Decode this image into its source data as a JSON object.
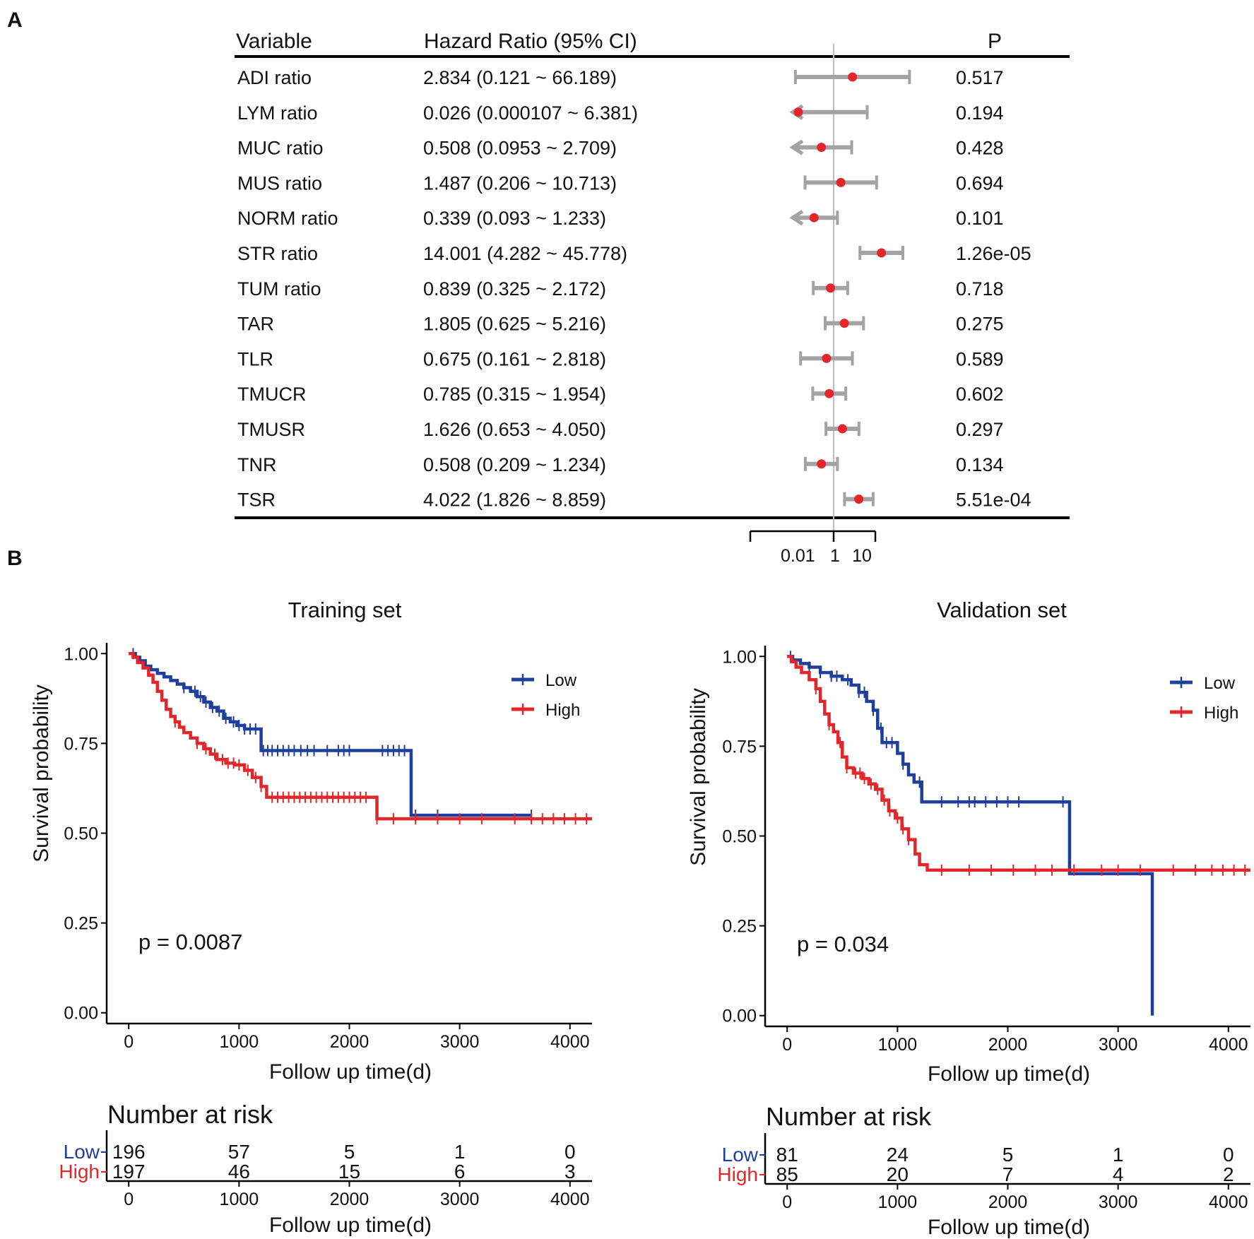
{
  "panel_labels": {
    "a": "A",
    "b": "B"
  },
  "colors": {
    "low": "#1f3f9c",
    "high": "#e3262a",
    "ci": "#a3a3a3",
    "point": "#e3262a",
    "ref": "#bdbdbd"
  },
  "chart_data": [
    {
      "type": "forest",
      "headers": {
        "variable": "Variable",
        "hr": "Hazard Ratio (95% CI)",
        "p": "P"
      },
      "rows": [
        {
          "variable": "ADI ratio",
          "hr_text": "2.834 (0.121 ~ 66.189)",
          "hr": 2.834,
          "lower": 0.121,
          "upper": 66.189,
          "p": "0.517"
        },
        {
          "variable": "LYM ratio",
          "hr_text": "0.026 (0.000107 ~  6.381)",
          "hr": 0.026,
          "lower": 0.000107,
          "upper": 6.381,
          "p": "0.194"
        },
        {
          "variable": "MUC ratio",
          "hr_text": "0.508 (0.0953 ~  2.709)",
          "hr": 0.508,
          "lower": 0.0953,
          "upper": 2.709,
          "p": "0.428"
        },
        {
          "variable": "MUS ratio",
          "hr_text": "1.487 (0.206 ~ 10.713)",
          "hr": 1.487,
          "lower": 0.206,
          "upper": 10.713,
          "p": "0.694"
        },
        {
          "variable": "NORM ratio",
          "hr_text": "0.339 (0.093 ~  1.233)",
          "hr": 0.339,
          "lower": 0.093,
          "upper": 1.233,
          "p": "0.101"
        },
        {
          "variable": "STR ratio",
          "hr_text": "14.001 (4.282 ~ 45.778)",
          "hr": 14.001,
          "lower": 4.282,
          "upper": 45.778,
          "p": "1.26e-05"
        },
        {
          "variable": "TUM ratio",
          "hr_text": "0.839 (0.325 ~  2.172)",
          "hr": 0.839,
          "lower": 0.325,
          "upper": 2.172,
          "p": "0.718"
        },
        {
          "variable": "TAR",
          "hr_text": "1.805 (0.625 ~  5.216)",
          "hr": 1.805,
          "lower": 0.625,
          "upper": 5.216,
          "p": "0.275"
        },
        {
          "variable": "TLR",
          "hr_text": "0.675 (0.161 ~  2.818)",
          "hr": 0.675,
          "lower": 0.161,
          "upper": 2.818,
          "p": "0.589"
        },
        {
          "variable": "TMUCR",
          "hr_text": "0.785 (0.315 ~  1.954)",
          "hr": 0.785,
          "lower": 0.315,
          "upper": 1.954,
          "p": "0.602"
        },
        {
          "variable": "TMUSR",
          "hr_text": "1.626 (0.653 ~  4.050)",
          "hr": 1.626,
          "lower": 0.653,
          "upper": 4.05,
          "p": "0.297"
        },
        {
          "variable": "TNR",
          "hr_text": "0.508 (0.209 ~  1.234)",
          "hr": 0.508,
          "lower": 0.209,
          "upper": 1.234,
          "p": "0.134"
        },
        {
          "variable": "TSR",
          "hr_text": "4.022 (1.826 ~  8.859)",
          "hr": 4.022,
          "lower": 1.826,
          "upper": 8.859,
          "p": "5.51e-04"
        }
      ],
      "x_scale": "log",
      "x_ticks": [
        0.01,
        1,
        10
      ],
      "x_tick_labels": [
        "0.01",
        "1",
        "10"
      ],
      "reference_line": 1
    },
    {
      "type": "line",
      "subtype": "kaplan-meier",
      "title": "Training set",
      "xlabel": "Follow up time(d)",
      "ylabel": "Survival probability",
      "xlim": [
        -200,
        4200
      ],
      "ylim": [
        -0.03,
        1.03
      ],
      "x_ticks": [
        0,
        1000,
        2000,
        3000,
        4000
      ],
      "y_ticks": [
        0,
        0.25,
        0.5,
        0.75,
        1
      ],
      "y_tick_labels": [
        "0.00",
        "0.25",
        "0.50",
        "0.75",
        "1.00"
      ],
      "p_text": "p = 0.0087",
      "legend": [
        "Low",
        "High"
      ],
      "series": [
        {
          "name": "Low",
          "color_key": "low",
          "steps": [
            [
              0,
              1
            ],
            [
              30,
              1
            ],
            [
              60,
              0.99
            ],
            [
              100,
              0.98
            ],
            [
              150,
              0.965
            ],
            [
              200,
              0.955
            ],
            [
              260,
              0.945
            ],
            [
              320,
              0.935
            ],
            [
              380,
              0.925
            ],
            [
              440,
              0.915
            ],
            [
              500,
              0.905
            ],
            [
              560,
              0.895
            ],
            [
              620,
              0.88
            ],
            [
              680,
              0.865
            ],
            [
              740,
              0.85
            ],
            [
              800,
              0.84
            ],
            [
              860,
              0.82
            ],
            [
              920,
              0.81
            ],
            [
              980,
              0.8
            ],
            [
              1050,
              0.79
            ],
            [
              1200,
              0.73
            ],
            [
              2560,
              0.73
            ],
            [
              2560,
              0.55
            ],
            [
              3650,
              0.55
            ]
          ],
          "censor": [
            40,
            500,
            600,
            650,
            700,
            760,
            820,
            880,
            950,
            1000,
            1050,
            1100,
            1150,
            1220,
            1260,
            1300,
            1350,
            1400,
            1450,
            1500,
            1560,
            1620,
            1680,
            1800,
            1900,
            1950,
            2000,
            2300,
            2350,
            2400,
            2450,
            2500,
            2600,
            2800,
            3650
          ]
        },
        {
          "name": "High",
          "color_key": "high",
          "steps": [
            [
              0,
              1
            ],
            [
              40,
              0.99
            ],
            [
              80,
              0.975
            ],
            [
              130,
              0.96
            ],
            [
              180,
              0.94
            ],
            [
              220,
              0.92
            ],
            [
              260,
              0.895
            ],
            [
              300,
              0.87
            ],
            [
              340,
              0.845
            ],
            [
              380,
              0.825
            ],
            [
              420,
              0.81
            ],
            [
              460,
              0.795
            ],
            [
              500,
              0.78
            ],
            [
              560,
              0.765
            ],
            [
              620,
              0.75
            ],
            [
              680,
              0.735
            ],
            [
              740,
              0.72
            ],
            [
              800,
              0.705
            ],
            [
              880,
              0.695
            ],
            [
              960,
              0.69
            ],
            [
              1050,
              0.675
            ],
            [
              1120,
              0.655
            ],
            [
              1200,
              0.63
            ],
            [
              1250,
              0.6
            ],
            [
              2250,
              0.6
            ],
            [
              2250,
              0.54
            ],
            [
              4200,
              0.54
            ]
          ],
          "censor": [
            420,
            620,
            700,
            780,
            850,
            900,
            950,
            1000,
            1080,
            1150,
            1200,
            1300,
            1350,
            1400,
            1450,
            1500,
            1550,
            1600,
            1650,
            1700,
            1750,
            1800,
            1850,
            1900,
            1950,
            2000,
            2050,
            2100,
            2150,
            2250,
            2400,
            2600,
            2800,
            3000,
            3200,
            3500,
            3650,
            3750,
            3850,
            3950,
            4050,
            4150
          ]
        }
      ],
      "risk_table": {
        "title": "Number at risk",
        "times": [
          0,
          1000,
          2000,
          3000,
          4000
        ],
        "rows": [
          {
            "name": "Low",
            "color_key": "low",
            "counts": [
              "196",
              "57",
              "5",
              "1",
              "0"
            ]
          },
          {
            "name": "High",
            "color_key": "high",
            "counts": [
              "197",
              "46",
              "15",
              "6",
              "3"
            ]
          }
        ],
        "xlabel": "Follow up time(d)"
      }
    },
    {
      "type": "line",
      "subtype": "kaplan-meier",
      "title": "Validation set",
      "xlabel": "Follow up time(d)",
      "ylabel": "Survival probability",
      "xlim": [
        -200,
        4200
      ],
      "ylim": [
        -0.03,
        1.03
      ],
      "x_ticks": [
        0,
        1000,
        2000,
        3000,
        4000
      ],
      "y_ticks": [
        0,
        0.25,
        0.5,
        0.75,
        1
      ],
      "y_tick_labels": [
        "0.00",
        "0.25",
        "0.50",
        "0.75",
        "1.00"
      ],
      "p_text": "p = 0.034",
      "legend": [
        "Low",
        "High"
      ],
      "series": [
        {
          "name": "Low",
          "color_key": "low",
          "steps": [
            [
              0,
              1
            ],
            [
              50,
              0.99
            ],
            [
              120,
              0.98
            ],
            [
              200,
              0.97
            ],
            [
              300,
              0.955
            ],
            [
              400,
              0.945
            ],
            [
              500,
              0.935
            ],
            [
              580,
              0.92
            ],
            [
              650,
              0.9
            ],
            [
              720,
              0.875
            ],
            [
              780,
              0.85
            ],
            [
              820,
              0.8
            ],
            [
              860,
              0.76
            ],
            [
              960,
              0.76
            ],
            [
              1000,
              0.73
            ],
            [
              1050,
              0.7
            ],
            [
              1100,
              0.67
            ],
            [
              1150,
              0.65
            ],
            [
              1220,
              0.595
            ],
            [
              2560,
              0.595
            ],
            [
              2560,
              0.395
            ],
            [
              3310,
              0.395
            ],
            [
              3310,
              0
            ]
          ],
          "censor": [
            30,
            200,
            300,
            400,
            450,
            550,
            650,
            700,
            780,
            850,
            900,
            950,
            1050,
            1200,
            1400,
            1550,
            1650,
            1700,
            1800,
            1900,
            2000,
            2100,
            2500
          ]
        },
        {
          "name": "High",
          "color_key": "high",
          "steps": [
            [
              0,
              1
            ],
            [
              40,
              0.985
            ],
            [
              80,
              0.97
            ],
            [
              130,
              0.955
            ],
            [
              200,
              0.935
            ],
            [
              260,
              0.91
            ],
            [
              300,
              0.875
            ],
            [
              340,
              0.84
            ],
            [
              380,
              0.81
            ],
            [
              420,
              0.79
            ],
            [
              460,
              0.76
            ],
            [
              500,
              0.72
            ],
            [
              540,
              0.69
            ],
            [
              600,
              0.675
            ],
            [
              680,
              0.66
            ],
            [
              740,
              0.645
            ],
            [
              800,
              0.63
            ],
            [
              860,
              0.6
            ],
            [
              920,
              0.57
            ],
            [
              980,
              0.55
            ],
            [
              1040,
              0.52
            ],
            [
              1100,
              0.49
            ],
            [
              1160,
              0.45
            ],
            [
              1200,
              0.42
            ],
            [
              1270,
              0.405
            ],
            [
              4200,
              0.405
            ]
          ],
          "censor": [
            260,
            380,
            480,
            540,
            620,
            660,
            700,
            760,
            820,
            880,
            930,
            1000,
            1050,
            1100,
            1400,
            1650,
            1850,
            2050,
            2250,
            2400,
            2600,
            2850,
            3000,
            3200,
            3500,
            3700,
            3850,
            3950,
            4050,
            4150
          ]
        }
      ],
      "risk_table": {
        "title": "Number at risk",
        "times": [
          0,
          1000,
          2000,
          3000,
          4000
        ],
        "rows": [
          {
            "name": "Low",
            "color_key": "low",
            "counts": [
              "81",
              "24",
              "5",
              "1",
              "0"
            ]
          },
          {
            "name": "High",
            "color_key": "high",
            "counts": [
              "85",
              "20",
              "7",
              "4",
              "2"
            ]
          }
        ],
        "xlabel": "Follow up time(d)"
      }
    }
  ]
}
